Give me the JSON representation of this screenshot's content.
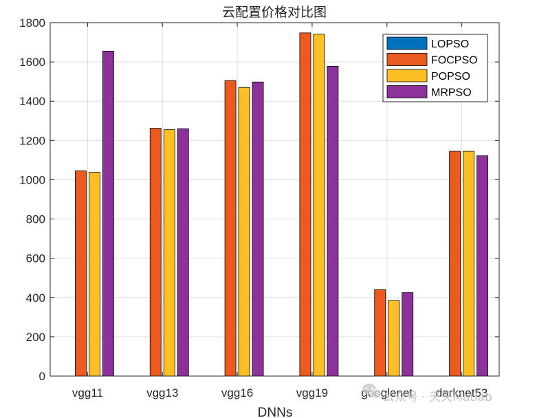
{
  "chart_data": {
    "type": "bar",
    "title": "云配置价格对比图",
    "xlabel": "DNNs",
    "ylabel": "",
    "ylim": [
      0,
      1800
    ],
    "yticks": [
      0,
      200,
      400,
      600,
      800,
      1000,
      1200,
      1400,
      1600,
      1800
    ],
    "categories": [
      "vgg11",
      "vgg13",
      "vgg16",
      "vgg19",
      "googlenet",
      "darknet53"
    ],
    "grid": true,
    "legend_position": "top-right",
    "series": [
      {
        "name": "LOPSO",
        "color": "#0072BD",
        "values": [
          0,
          0,
          0,
          0,
          0,
          0
        ]
      },
      {
        "name": "FOCPSO",
        "color": "#EB5A1E",
        "values": [
          1045,
          1262,
          1505,
          1748,
          440,
          1145
        ]
      },
      {
        "name": "POPSO",
        "color": "#FDBE26",
        "values": [
          1038,
          1255,
          1470,
          1742,
          385,
          1145
        ]
      },
      {
        "name": "MRPSO",
        "color": "#8C3299",
        "values": [
          1655,
          1260,
          1498,
          1578,
          425,
          1122
        ]
      }
    ]
  },
  "watermark": {
    "text": "公众号 · 天天Matlab",
    "icon": "wechat-icon"
  }
}
